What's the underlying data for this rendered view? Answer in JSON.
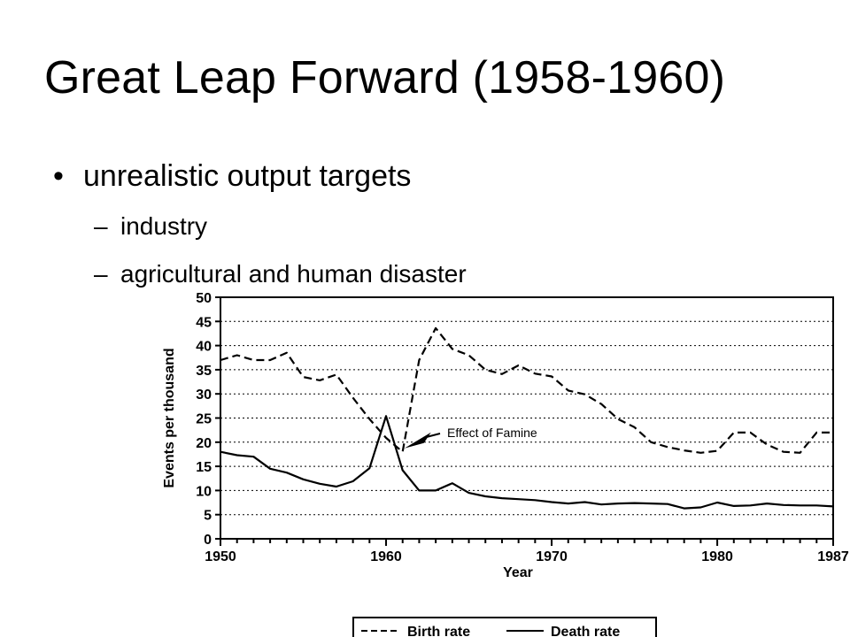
{
  "slide": {
    "title": "Great Leap Forward (1958-1960)",
    "bullet": "unrealistic output targets",
    "sub1": "industry",
    "sub2": "agricultural and human disaster"
  },
  "chart_data": {
    "type": "line",
    "xlabel": "Year",
    "ylabel": "Events per thousand",
    "xlim": [
      1950,
      1987
    ],
    "ylim": [
      0,
      50
    ],
    "x_ticks": [
      1950,
      1960,
      1970,
      1980,
      1987
    ],
    "y_ticks": [
      0,
      5,
      10,
      15,
      20,
      25,
      30,
      35,
      40,
      45,
      50
    ],
    "grid": "horizontal dotted",
    "legend": "bottom",
    "annotation": "Effect of Famine",
    "series": [
      {
        "name": "Birth rate",
        "style": "dashed",
        "x": [
          1950,
          1951,
          1952,
          1953,
          1954,
          1955,
          1956,
          1957,
          1958,
          1959,
          1960,
          1961,
          1962,
          1963,
          1964,
          1965,
          1966,
          1967,
          1968,
          1969,
          1970,
          1971,
          1972,
          1973,
          1974,
          1975,
          1976,
          1977,
          1978,
          1979,
          1980,
          1981,
          1982,
          1983,
          1984,
          1985,
          1986,
          1987
        ],
        "values": [
          37,
          38,
          37,
          37,
          38.5,
          33.5,
          32.8,
          34,
          29.2,
          24.8,
          20.9,
          18,
          37,
          43.6,
          39.3,
          38,
          35,
          34.1,
          35.9,
          34.2,
          33.6,
          30.7,
          29.9,
          27.9,
          24.8,
          23.1,
          20,
          19,
          18.3,
          17.8,
          18.2,
          22,
          22,
          19.5,
          18,
          17.8,
          22,
          22
        ]
      },
      {
        "name": "Death rate",
        "style": "solid",
        "x": [
          1950,
          1951,
          1952,
          1953,
          1954,
          1955,
          1956,
          1957,
          1958,
          1959,
          1960,
          1961,
          1962,
          1963,
          1964,
          1965,
          1966,
          1967,
          1968,
          1969,
          1970,
          1971,
          1972,
          1973,
          1974,
          1975,
          1976,
          1977,
          1978,
          1979,
          1980,
          1981,
          1982,
          1983,
          1984,
          1985,
          1986,
          1987
        ],
        "values": [
          18,
          17.3,
          17,
          14.5,
          13.7,
          12.3,
          11.4,
          10.8,
          11.9,
          14.6,
          25.4,
          14.2,
          10,
          10,
          11.5,
          9.5,
          8.8,
          8.4,
          8.2,
          8,
          7.6,
          7.3,
          7.6,
          7.1,
          7.3,
          7.4,
          7.3,
          7.2,
          6.3,
          6.5,
          7.5,
          6.8,
          6.9,
          7.3,
          7,
          6.9,
          6.9,
          6.7
        ]
      }
    ]
  }
}
